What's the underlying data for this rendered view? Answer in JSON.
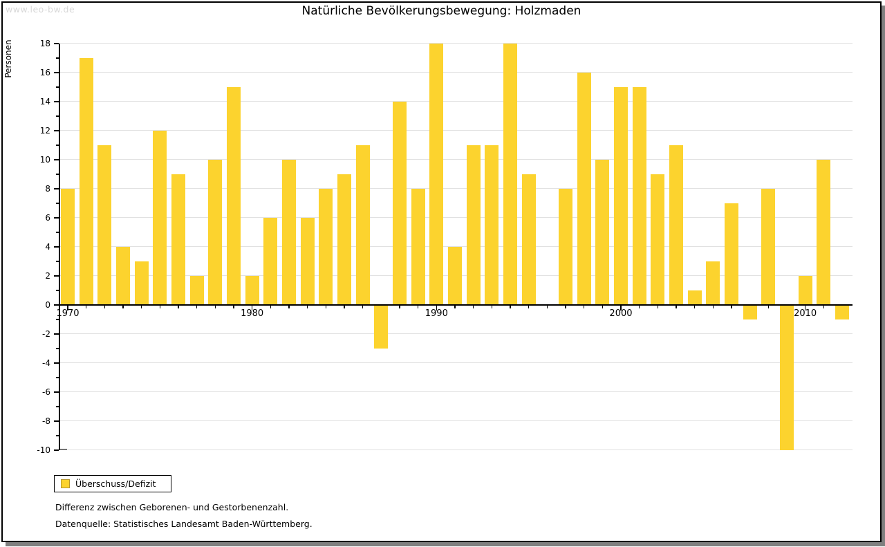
{
  "watermark": "www.leo-bw.de",
  "title": "Natürliche Bevölkerungsbewegung: Holzmaden",
  "legend": {
    "label": "Überschuss/Defizit"
  },
  "footnotes": [
    "Differenz zwischen Geborenen- und Gestorbenenzahl.",
    "Datenquelle: Statistisches Landesamt Baden-Württemberg."
  ],
  "colors": {
    "bar": "#FCD32E",
    "bar_border": "#B5952B",
    "grid": "#E1E1E1",
    "axis": "#000000",
    "text": "#000000",
    "watermark": "#D8D8D8",
    "shadow": "#808080",
    "background": "#FFFFFF"
  },
  "chart_data": {
    "type": "bar",
    "title": "Natürliche Bevölkerungsbewegung: Holzmaden",
    "xlabel": "",
    "ylabel": "Personen",
    "ylim": [
      -10,
      18
    ],
    "ytick_step": 2,
    "xticks_labeled": [
      1970,
      1980,
      1990,
      2000,
      2010
    ],
    "legend_entries": [
      "Überschuss/Defizit"
    ],
    "grid": "horizontal",
    "years": [
      1970,
      1971,
      1972,
      1973,
      1974,
      1975,
      1976,
      1977,
      1978,
      1979,
      1980,
      1981,
      1982,
      1983,
      1984,
      1985,
      1986,
      1987,
      1988,
      1989,
      1990,
      1991,
      1992,
      1993,
      1994,
      1995,
      1996,
      1997,
      1998,
      1999,
      2000,
      2001,
      2002,
      2003,
      2004,
      2005,
      2006,
      2007,
      2008,
      2009,
      2010,
      2011,
      2012
    ],
    "values": [
      8,
      17,
      11,
      4,
      3,
      12,
      9,
      2,
      10,
      15,
      2,
      6,
      10,
      6,
      8,
      9,
      11,
      -3,
      14,
      8,
      18,
      4,
      11,
      11,
      18,
      9,
      0,
      8,
      16,
      10,
      15,
      15,
      9,
      11,
      1,
      3,
      7,
      -1,
      8,
      -10,
      2,
      10,
      -1
    ]
  }
}
